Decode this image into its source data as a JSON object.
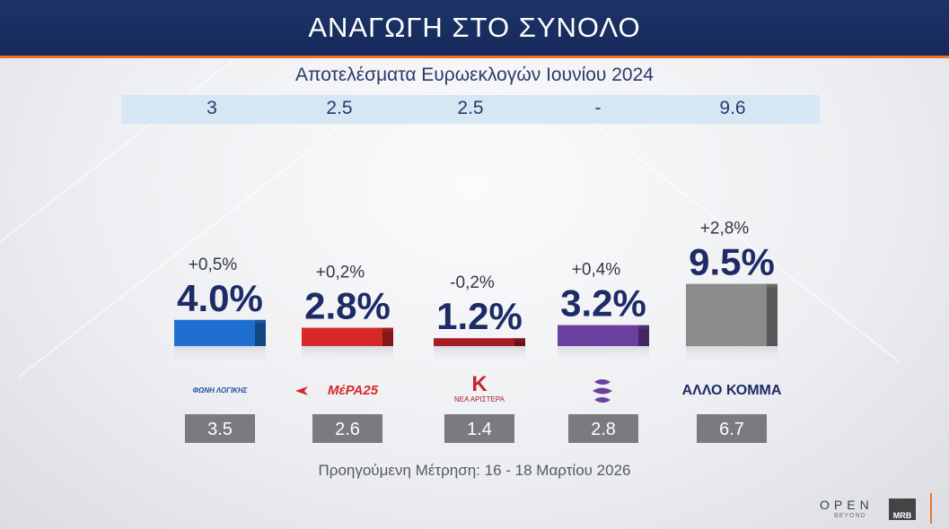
{
  "header": {
    "title": "ΑΝΑΓΩΓΗ ΣΤΟ ΣΥΝΟΛΟ"
  },
  "subtitle": "Αποτελέσματα Ευρωεκλογών Ιουνίου 2024",
  "eu_results": [
    "3",
    "2.5",
    "2.5",
    "-",
    "9.6"
  ],
  "footer_note": "Προηγούμενη Μέτρηση: 16 - 18 Μαρτίου 2026",
  "brand": {
    "open": "OPEN",
    "beyond": "BEYOND",
    "mrb": "MRB"
  },
  "colors": {
    "header": "#1d3468",
    "accent": "#e9742b",
    "value_text": "#1d2b66",
    "party_1": "#1f6fd0",
    "party_2": "#d62828",
    "party_3": "#a31f24",
    "party_4": "#6b3f9e",
    "party_5": "#8c8c8c"
  },
  "chart_data": {
    "type": "bar",
    "ylim": [
      0,
      10
    ],
    "categories": [
      "ΦΩΝΗ ΛΟΓΙΚΗΣ",
      "ΜέΡΑ25",
      "ΝΕΑ ΑΡΙΣΤΕΡΑ",
      "",
      "ΑΛΛΟ ΚΟΜΜΑ"
    ],
    "logos": [
      "fonh-logikhs-logo",
      "mera25-logo",
      "nea-aristera-logo",
      "party-4-logo",
      "allo-komma-label"
    ],
    "values": [
      4.0,
      2.8,
      1.2,
      3.2,
      9.5
    ],
    "value_labels": [
      "4.0%",
      "2.8%",
      "1.2%",
      "3.2%",
      "9.5%"
    ],
    "change_labels": [
      "+0,5%",
      "+0,2%",
      "-0,2%",
      "+0,4%",
      "+2,8%"
    ],
    "previous_labels": [
      "3.5",
      "2.6",
      "1.4",
      "2.8",
      "6.7"
    ]
  }
}
